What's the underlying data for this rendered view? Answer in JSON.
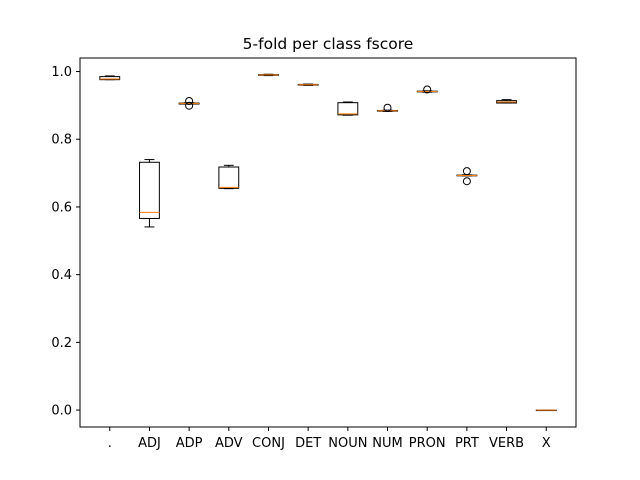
{
  "chart_data": {
    "type": "box",
    "title": "5-fold per class fscore",
    "xlabel": "",
    "ylabel": "",
    "ylim": [
      -0.05,
      1.04
    ],
    "yticks": [
      0.0,
      0.2,
      0.4,
      0.6,
      0.8,
      1.0
    ],
    "ytick_labels": [
      "0.0",
      "0.2",
      "0.4",
      "0.6",
      "0.8",
      "1.0"
    ],
    "categories": [
      ".",
      "ADJ",
      "ADP",
      "ADV",
      "CONJ",
      "DET",
      "NOUN",
      "NUM",
      "PRON",
      "PRT",
      "VERB",
      "X"
    ],
    "grid": false,
    "box_color": "#000000",
    "median_color": "#ff7f0e",
    "boxes": [
      {
        "label": ".",
        "whislo": 0.976,
        "q1": 0.976,
        "med": 0.978,
        "q3": 0.985,
        "whishi": 0.987,
        "fliers": []
      },
      {
        "label": "ADJ",
        "whislo": 0.541,
        "q1": 0.566,
        "med": 0.584,
        "q3": 0.732,
        "whishi": 0.74,
        "fliers": []
      },
      {
        "label": "ADP",
        "whislo": 0.904,
        "q1": 0.904,
        "med": 0.906,
        "q3": 0.907,
        "whishi": 0.908,
        "fliers": [
          0.899,
          0.913
        ]
      },
      {
        "label": "ADV",
        "whislo": 0.654,
        "q1": 0.655,
        "med": 0.658,
        "q3": 0.718,
        "whishi": 0.723,
        "fliers": []
      },
      {
        "label": "CONJ",
        "whislo": 0.988,
        "q1": 0.989,
        "med": 0.99,
        "q3": 0.991,
        "whishi": 0.992,
        "fliers": []
      },
      {
        "label": "DET",
        "whislo": 0.959,
        "q1": 0.96,
        "med": 0.961,
        "q3": 0.962,
        "whishi": 0.963,
        "fliers": []
      },
      {
        "label": "NOUN",
        "whislo": 0.871,
        "q1": 0.872,
        "med": 0.875,
        "q3": 0.908,
        "whishi": 0.91,
        "fliers": []
      },
      {
        "label": "NUM",
        "whislo": 0.882,
        "q1": 0.883,
        "med": 0.884,
        "q3": 0.885,
        "whishi": 0.886,
        "fliers": [
          0.893
        ]
      },
      {
        "label": "PRON",
        "whislo": 0.939,
        "q1": 0.94,
        "med": 0.941,
        "q3": 0.942,
        "whishi": 0.943,
        "fliers": [
          0.947
        ]
      },
      {
        "label": "PRT",
        "whislo": 0.692,
        "q1": 0.692,
        "med": 0.693,
        "q3": 0.694,
        "whishi": 0.695,
        "fliers": [
          0.676,
          0.706
        ]
      },
      {
        "label": "VERB",
        "whislo": 0.907,
        "q1": 0.907,
        "med": 0.91,
        "q3": 0.914,
        "whishi": 0.917,
        "fliers": []
      },
      {
        "label": "X",
        "whislo": 0.0,
        "q1": 0.0,
        "med": 0.0,
        "q3": 0.0,
        "whishi": 0.0,
        "fliers": []
      }
    ]
  }
}
